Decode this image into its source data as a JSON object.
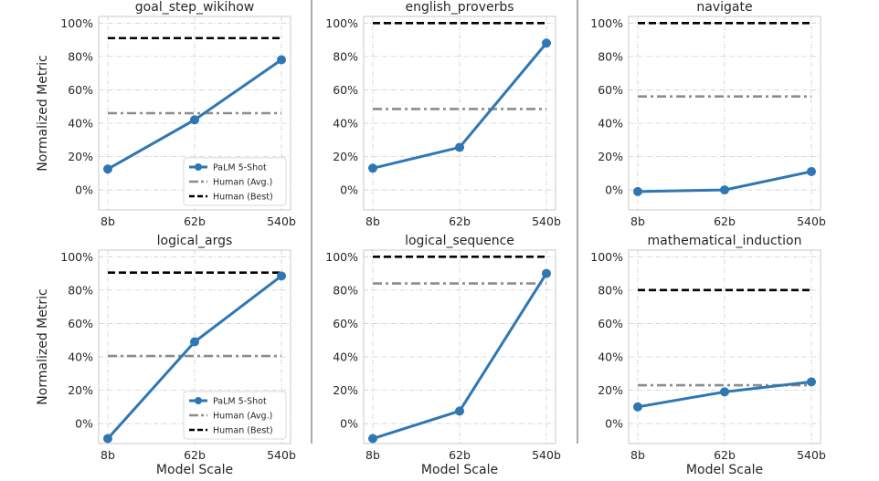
{
  "chart_data": {
    "type": "line",
    "categories": [
      "8b",
      "62b",
      "540b"
    ],
    "xlabel": "Model Scale",
    "ylabel": "Normalized Metric",
    "yticks": [
      "0%",
      "20%",
      "40%",
      "60%",
      "80%",
      "100%"
    ],
    "ylim": [
      -0.12,
      1.04
    ],
    "grid": true,
    "legend": {
      "placement": "lower-right",
      "entries": [
        "PaLM 5-Shot",
        "Human (Avg.)",
        "Human (Best)"
      ]
    },
    "colors": {
      "palm": "#2f77b3",
      "human_avg": "#8c8c8c",
      "human_best": "#000000"
    },
    "panels": [
      {
        "title": "goal_step_wikihow",
        "palm": [
          0.125,
          0.42,
          0.78
        ],
        "human_avg": 0.46,
        "human_best": 0.91,
        "legend": true
      },
      {
        "title": "english_proverbs",
        "palm": [
          0.13,
          0.255,
          0.88
        ],
        "human_avg": 0.485,
        "human_best": 1.0,
        "legend": false
      },
      {
        "title": "navigate",
        "palm": [
          -0.01,
          0.0,
          0.11
        ],
        "human_avg": 0.56,
        "human_best": 1.0,
        "legend": false
      },
      {
        "title": "logical_args",
        "palm": [
          -0.09,
          0.49,
          0.885
        ],
        "human_avg": 0.405,
        "human_best": 0.905,
        "legend": true
      },
      {
        "title": "logical_sequence",
        "palm": [
          -0.09,
          0.075,
          0.9
        ],
        "human_avg": 0.84,
        "human_best": 1.0,
        "legend": false
      },
      {
        "title": "mathematical_induction",
        "palm": [
          0.1,
          0.19,
          0.25
        ],
        "human_avg": 0.23,
        "human_best": 0.8,
        "legend": false
      }
    ]
  }
}
